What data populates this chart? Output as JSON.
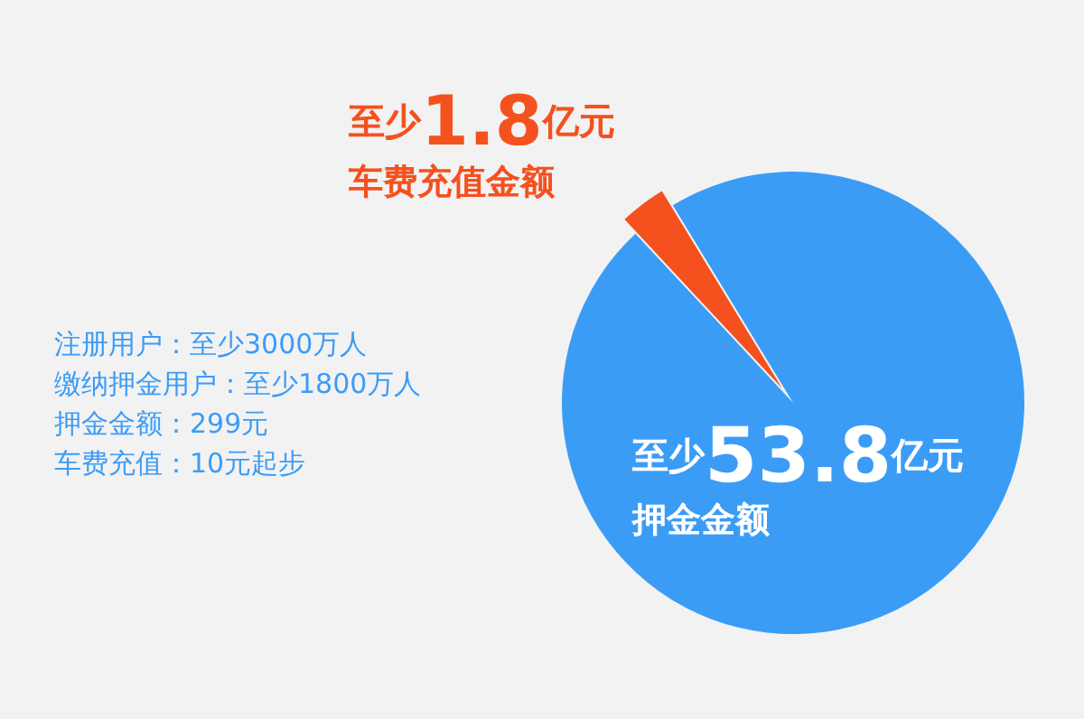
{
  "chart_data": {
    "type": "pie",
    "categories": [
      "车费充值金额",
      "押金金额"
    ],
    "values": [
      1.8,
      53.8
    ],
    "colors": [
      "#f4511e",
      "#3b9cf6"
    ],
    "value_labels": [
      "至少1.8亿元",
      "至少53.8亿元"
    ],
    "legend": false,
    "annotations": [
      "注册用户：至少3000万人",
      "缴纳押金用户：至少1800万人",
      "押金金额：299元",
      "车费充值：10元起步"
    ]
  }
}
